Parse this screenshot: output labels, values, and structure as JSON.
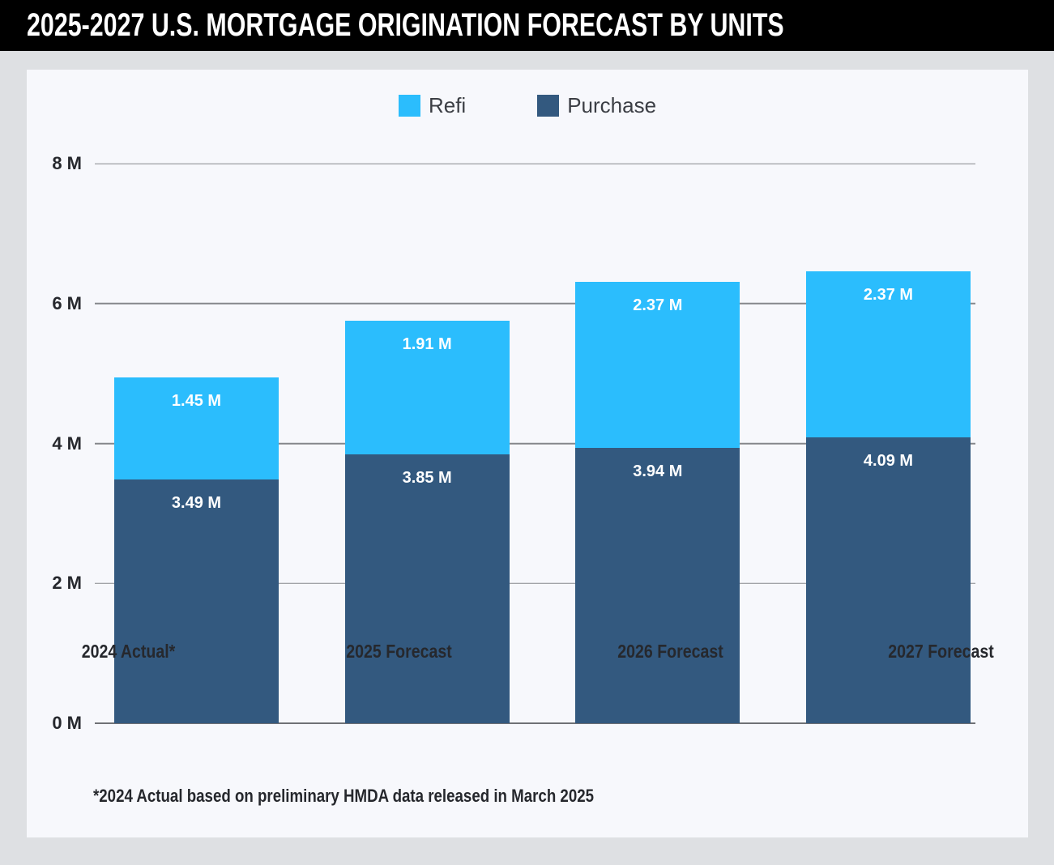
{
  "header": {
    "title": "2025-2027 U.S. MORTGAGE ORIGINATION FORECAST BY UNITS"
  },
  "legend": [
    {
      "label": "Refi",
      "color": "#2bbdfd"
    },
    {
      "label": "Purchase",
      "color": "#33597f"
    }
  ],
  "chart_data": {
    "type": "bar",
    "stacked": true,
    "title": "2025-2027 U.S. Mortgage Origination Forecast by Units",
    "categories": [
      "2024 Actual*",
      "2025 Forecast",
      "2026 Forecast",
      "2027 Forecast"
    ],
    "series": [
      {
        "name": "Purchase",
        "color": "#33597f",
        "values": [
          3.49,
          3.85,
          3.94,
          4.09
        ],
        "labels": [
          "3.49 M",
          "3.85 M",
          "3.94 M",
          "4.09 M"
        ]
      },
      {
        "name": "Refi",
        "color": "#2bbdfd",
        "values": [
          1.45,
          1.91,
          2.37,
          2.37
        ],
        "labels": [
          "1.45 M",
          "1.91 M",
          "2.37 M",
          "2.37 M"
        ]
      }
    ],
    "xlabel": "",
    "ylabel": "",
    "ylim": [
      0,
      8
    ],
    "yticks": [
      {
        "value": 0,
        "label": "0 M"
      },
      {
        "value": 2,
        "label": "2 M"
      },
      {
        "value": 4,
        "label": "4 M"
      },
      {
        "value": 6,
        "label": "6 M"
      },
      {
        "value": 8,
        "label": "8 M"
      }
    ],
    "grid": true,
    "legend_position": "top"
  },
  "footnote": "*2024 Actual based on preliminary HMDA data released in March 2025"
}
